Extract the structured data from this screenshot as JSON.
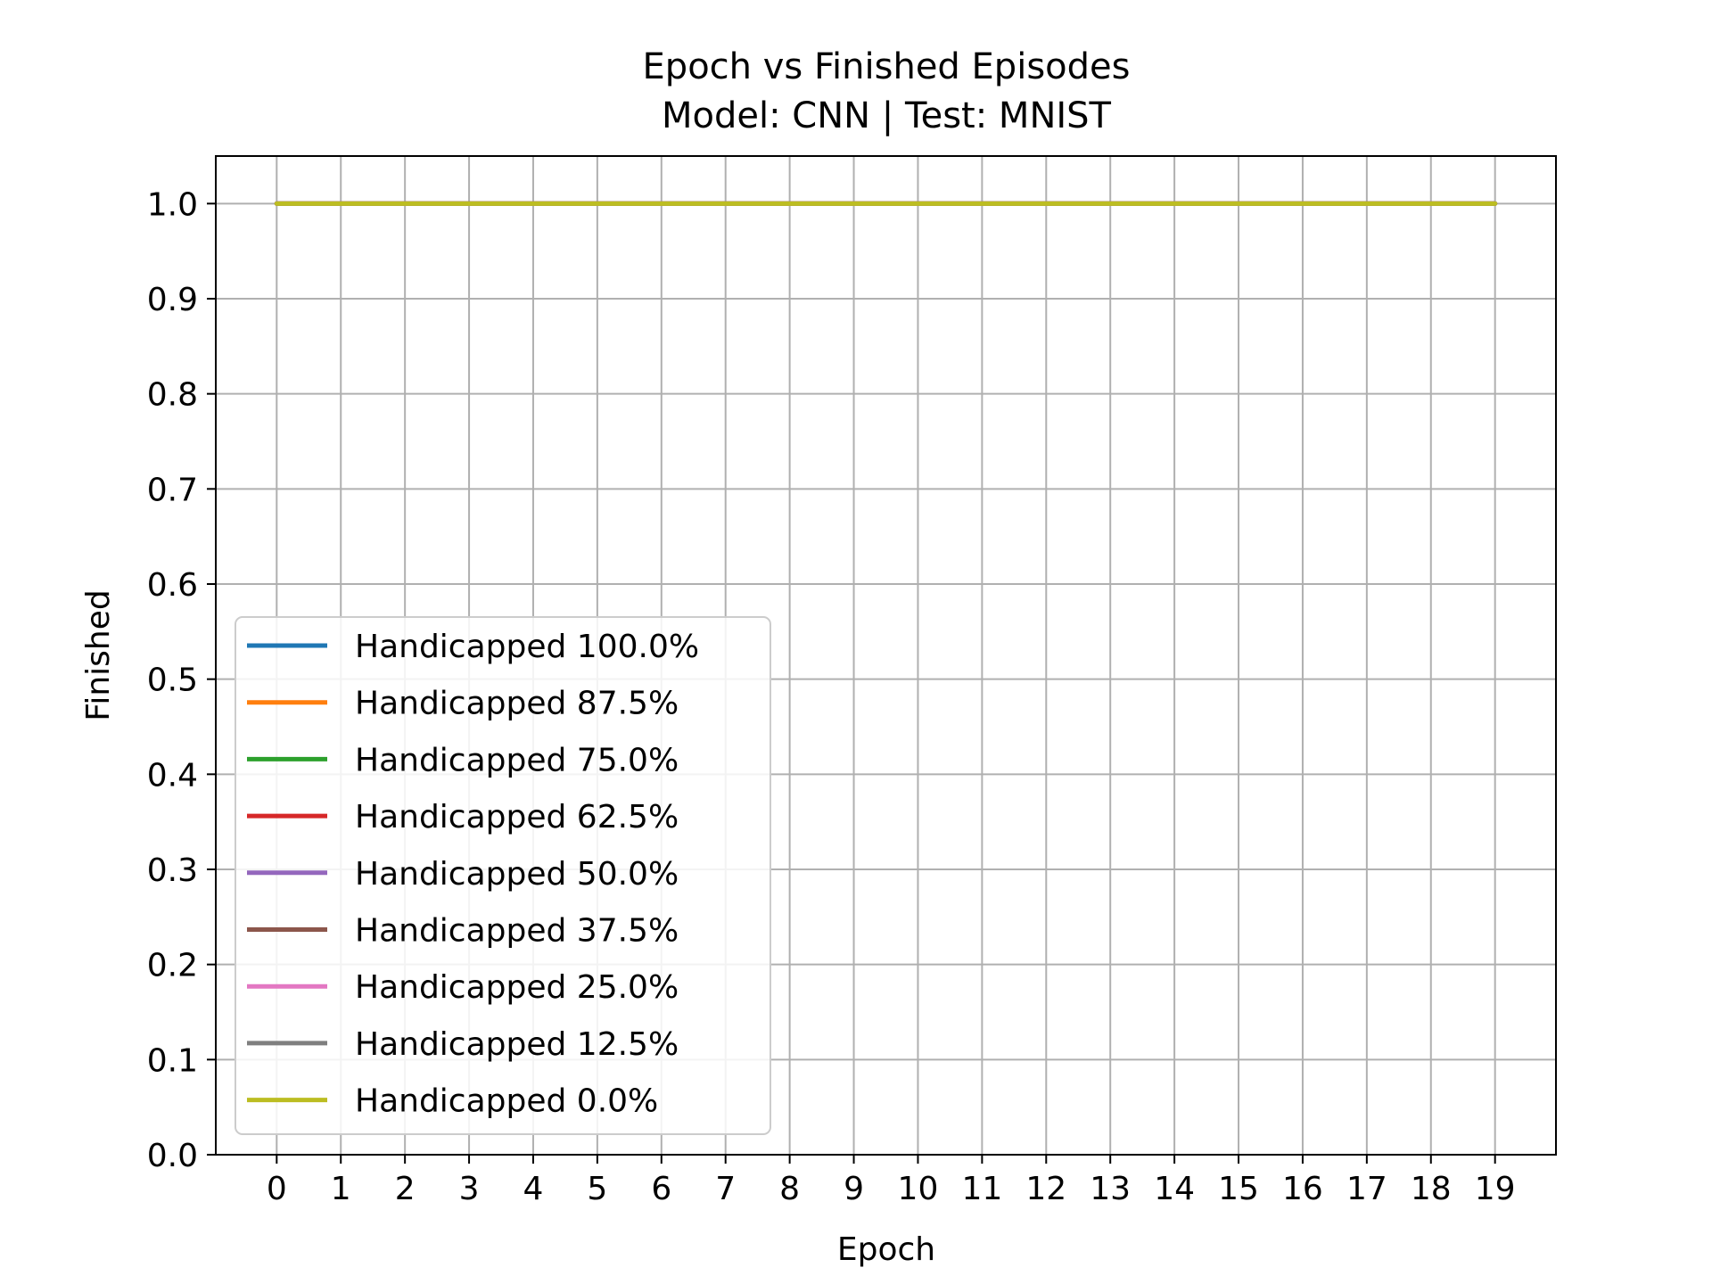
{
  "chart_data": {
    "type": "line",
    "title": "Epoch vs Finished Episodes",
    "subtitle": "Model: CNN | Test: MNIST",
    "xlabel": "Epoch",
    "ylabel": "Finished",
    "x": [
      0,
      1,
      2,
      3,
      4,
      5,
      6,
      7,
      8,
      9,
      10,
      11,
      12,
      13,
      14,
      15,
      16,
      17,
      18,
      19
    ],
    "xlim": [
      -0.95,
      19.95
    ],
    "ylim": [
      0.0,
      1.05
    ],
    "xticks": [
      "0",
      "1",
      "2",
      "3",
      "4",
      "5",
      "6",
      "7",
      "8",
      "9",
      "10",
      "11",
      "12",
      "13",
      "14",
      "15",
      "16",
      "17",
      "18",
      "19"
    ],
    "yticks": [
      "0.0",
      "0.1",
      "0.2",
      "0.3",
      "0.4",
      "0.5",
      "0.6",
      "0.7",
      "0.8",
      "0.9",
      "1.0"
    ],
    "grid": true,
    "legend_position": "lower-left",
    "series": [
      {
        "name": "Handicapped 100.0%",
        "color": "#1f77b4",
        "values": [
          1,
          1,
          1,
          1,
          1,
          1,
          1,
          1,
          1,
          1,
          1,
          1,
          1,
          1,
          1,
          1,
          1,
          1,
          1,
          1
        ]
      },
      {
        "name": "Handicapped 87.5%",
        "color": "#ff7f0e",
        "values": [
          1,
          1,
          1,
          1,
          1,
          1,
          1,
          1,
          1,
          1,
          1,
          1,
          1,
          1,
          1,
          1,
          1,
          1,
          1,
          1
        ]
      },
      {
        "name": "Handicapped 75.0%",
        "color": "#2ca02c",
        "values": [
          1,
          1,
          1,
          1,
          1,
          1,
          1,
          1,
          1,
          1,
          1,
          1,
          1,
          1,
          1,
          1,
          1,
          1,
          1,
          1
        ]
      },
      {
        "name": "Handicapped 62.5%",
        "color": "#d62728",
        "values": [
          1,
          1,
          1,
          1,
          1,
          1,
          1,
          1,
          1,
          1,
          1,
          1,
          1,
          1,
          1,
          1,
          1,
          1,
          1,
          1
        ]
      },
      {
        "name": "Handicapped 50.0%",
        "color": "#9467bd",
        "values": [
          1,
          1,
          1,
          1,
          1,
          1,
          1,
          1,
          1,
          1,
          1,
          1,
          1,
          1,
          1,
          1,
          1,
          1,
          1,
          1
        ]
      },
      {
        "name": "Handicapped 37.5%",
        "color": "#8c564b",
        "values": [
          1,
          1,
          1,
          1,
          1,
          1,
          1,
          1,
          1,
          1,
          1,
          1,
          1,
          1,
          1,
          1,
          1,
          1,
          1,
          1
        ]
      },
      {
        "name": "Handicapped 25.0%",
        "color": "#e377c2",
        "values": [
          1,
          1,
          1,
          1,
          1,
          1,
          1,
          1,
          1,
          1,
          1,
          1,
          1,
          1,
          1,
          1,
          1,
          1,
          1,
          1
        ]
      },
      {
        "name": "Handicapped 12.5%",
        "color": "#7f7f7f",
        "values": [
          1,
          1,
          1,
          1,
          1,
          1,
          1,
          1,
          1,
          1,
          1,
          1,
          1,
          1,
          1,
          1,
          1,
          1,
          1,
          1
        ]
      },
      {
        "name": "Handicapped 0.0%",
        "color": "#bcbd22",
        "values": [
          1,
          1,
          1,
          1,
          1,
          1,
          1,
          1,
          1,
          1,
          1,
          1,
          1,
          1,
          1,
          1,
          1,
          1,
          1,
          1
        ]
      }
    ]
  }
}
